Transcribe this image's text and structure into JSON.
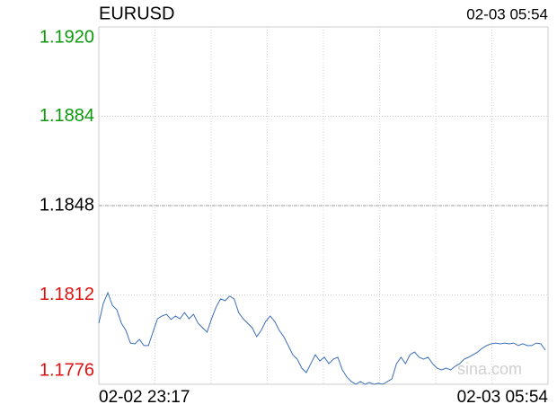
{
  "chart_data": {
    "type": "line",
    "title": "EURUSD",
    "time": "02-03 05:54",
    "watermark": "sina.com",
    "color": "#3a6fb8",
    "grid": true,
    "ylim": [
      1.1776,
      1.192
    ],
    "yticks": [
      {
        "value": 1.192,
        "label": "1.1920"
      },
      1.1884,
      1.1848,
      1.1812,
      1.1776
    ],
    "ytick_colors": [
      "#0a9a0a",
      "#0a9a0a",
      "#000000",
      "#e01010",
      "#e01010"
    ],
    "categories": [
      "02-02 23:17",
      null,
      null,
      null,
      null,
      null,
      null,
      null,
      null,
      null,
      null,
      null,
      null,
      null,
      null,
      null,
      null,
      null,
      null,
      null,
      null,
      null,
      null,
      null,
      null,
      null,
      null,
      null,
      null,
      null,
      null,
      null,
      null,
      null,
      null,
      null,
      null,
      null,
      null,
      null,
      null,
      null,
      null,
      null,
      null,
      null,
      null,
      null,
      null,
      null,
      null,
      null,
      null,
      null,
      null,
      null,
      null,
      null,
      null,
      null,
      null,
      null,
      null,
      null,
      null,
      null,
      null,
      null,
      null,
      null,
      null,
      null,
      null,
      null,
      null,
      null,
      null,
      null,
      null,
      null,
      null,
      null,
      null,
      null,
      null,
      null,
      null,
      null,
      null,
      null,
      null,
      null,
      null,
      null,
      null,
      null,
      null,
      null,
      null,
      "02-03 05:54"
    ],
    "values": [
      1.18006,
      1.18086,
      1.18129,
      1.18078,
      1.1806,
      1.18006,
      1.17977,
      1.17926,
      1.17923,
      1.17941,
      1.17916,
      1.17916,
      1.1797,
      1.18024,
      1.18035,
      1.18042,
      1.18021,
      1.18035,
      1.18024,
      1.18049,
      1.18024,
      1.18042,
      1.18006,
      1.17988,
      1.1797,
      1.18024,
      1.18071,
      1.18104,
      1.18097,
      1.18115,
      1.18104,
      1.18049,
      1.18024,
      1.18006,
      1.17988,
      1.17952,
      1.17977,
      1.18013,
      1.18035,
      1.18013,
      1.17977,
      1.17952,
      1.17916,
      1.17879,
      1.17861,
      1.17825,
      1.17807,
      1.17843,
      1.17879,
      1.17854,
      1.17869,
      1.17843,
      1.17861,
      1.17869,
      1.17818,
      1.17789,
      1.17771,
      1.1776,
      1.17771,
      1.1776,
      1.17767,
      1.1776,
      1.17764,
      1.1776,
      1.17771,
      1.17782,
      1.17843,
      1.17869,
      1.17843,
      1.17879,
      1.1789,
      1.17869,
      1.17861,
      1.17869,
      1.17843,
      1.17825,
      1.17818,
      1.17825,
      1.17818,
      1.17832,
      1.17843,
      1.17861,
      1.17869,
      1.17879,
      1.1789,
      1.17905,
      1.17916,
      1.17923,
      1.17926,
      1.17923,
      1.17926,
      1.17923,
      1.17926,
      1.17916,
      1.17923,
      1.17916,
      1.17916,
      1.17926,
      1.17923,
      1.17898
    ]
  }
}
